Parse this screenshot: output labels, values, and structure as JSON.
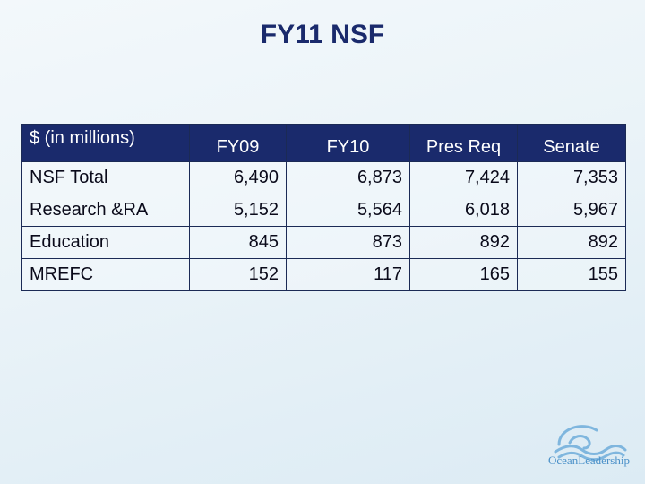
{
  "title": "FY11 NSF",
  "table": {
    "headers": [
      "$ (in millions)",
      "FY09",
      "FY10",
      "Pres Req",
      "Senate"
    ],
    "rows": [
      [
        "NSF Total",
        "6,490",
        "6,873",
        "7,424",
        "7,353"
      ],
      [
        "Research &RA",
        "5,152",
        "5,564",
        "6,018",
        "5,967"
      ],
      [
        "Education",
        "845",
        "873",
        "892",
        "892"
      ],
      [
        "MREFC",
        "152",
        "117",
        "165",
        "155"
      ]
    ]
  },
  "logo": {
    "word1": "Ocean",
    "word2": "Leadership",
    "icon": "wave-icon",
    "color": "#4a90c8"
  },
  "colors": {
    "title": "#1a2a6c",
    "header_bg": "#1a2a6c",
    "header_text": "#ffffff"
  }
}
